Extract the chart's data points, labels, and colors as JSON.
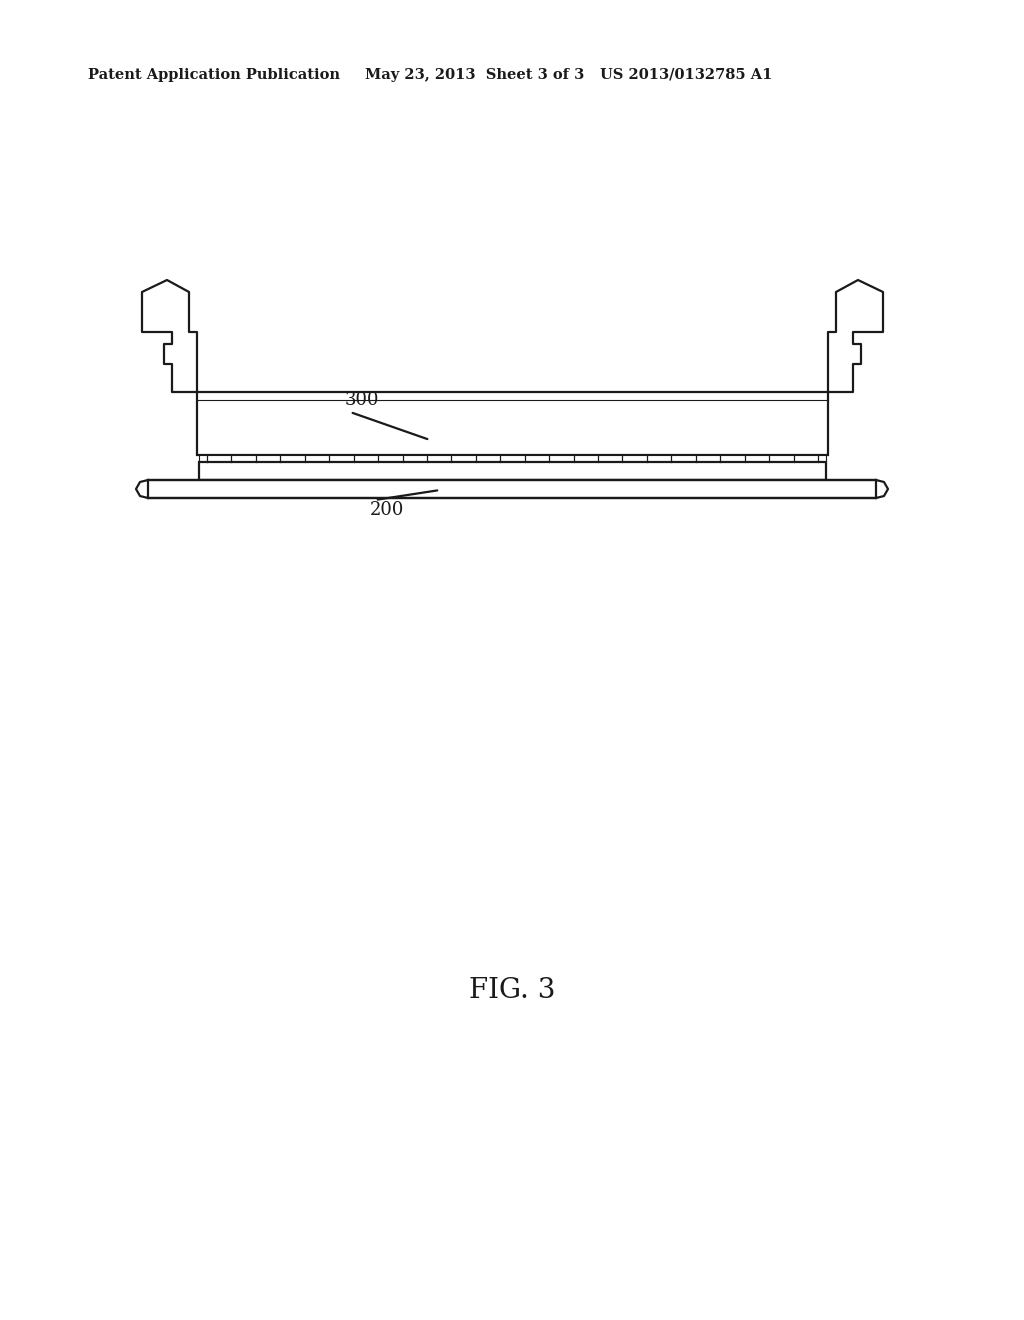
{
  "bg_color": "#ffffff",
  "line_color": "#1a1a1a",
  "header_left": "Patent Application Publication",
  "header_mid": "May 23, 2013  Sheet 3 of 3",
  "header_right": "US 2013/0132785 A1",
  "fig_label": "FIG. 3",
  "label_300": "300",
  "label_200": "200",
  "line_width": 1.6
}
